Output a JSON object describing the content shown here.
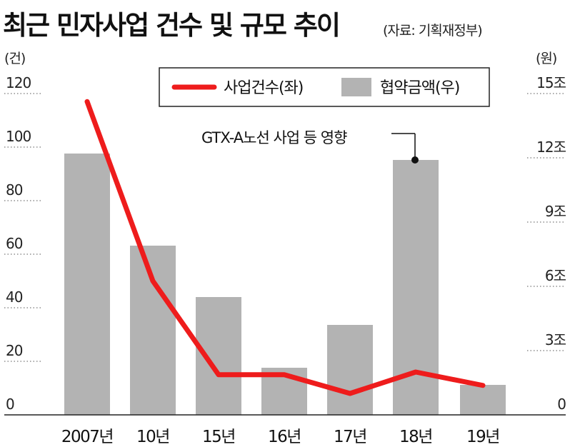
{
  "header": {
    "title": "최근 민자사업 건수 및 규모 추이",
    "source": "(자료: 기획재정부)"
  },
  "chart_data": {
    "type": "bar+line",
    "categories": [
      "2007년",
      "10년",
      "15년",
      "16년",
      "17년",
      "18년",
      "19년"
    ],
    "left_axis": {
      "unit": "(건)",
      "ticks": [
        "120",
        "100",
        "80",
        "60",
        "40",
        "20",
        "0"
      ],
      "ylim": [
        0,
        120
      ]
    },
    "right_axis": {
      "unit": "(원)",
      "ticks": [
        "15조",
        "12조",
        "9조",
        "6조",
        "3조",
        "0"
      ],
      "ylim": [
        0,
        15
      ]
    },
    "series": [
      {
        "name": "사업건수(좌)",
        "type": "line",
        "axis": "left",
        "color": "#ee1c1c",
        "values": [
          117,
          50,
          15,
          15,
          8,
          16,
          11
        ]
      },
      {
        "name": "협약금액(우)",
        "type": "bar",
        "axis": "right",
        "color": "#b3b3b3",
        "values": [
          12.2,
          7.9,
          5.5,
          2.2,
          4.2,
          11.9,
          1.4
        ]
      }
    ],
    "annotation": {
      "text": "GTX-A노선 사업 등 영향",
      "category": "18년"
    },
    "grid": "dotted"
  }
}
